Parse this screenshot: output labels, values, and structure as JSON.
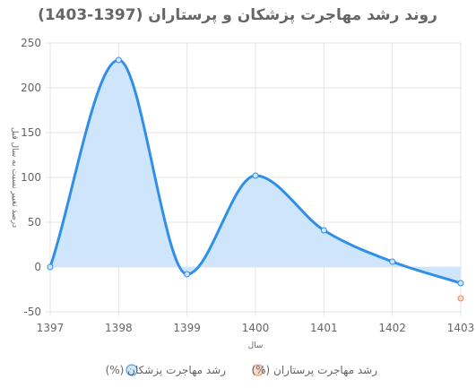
{
  "chart_data": {
    "type": "line",
    "title": "روند رشد مهاجرت پزشکان و پرستاران (1397-1403)",
    "xlabel": "سال",
    "ylabel": "درصد تغییر نسبت به سال قبل",
    "x": [
      "1397",
      "1398",
      "1399",
      "1400",
      "1401",
      "1402",
      "1403"
    ],
    "ylim": [
      -50,
      250
    ],
    "yticks": [
      -50,
      0,
      50,
      100,
      150,
      200,
      250
    ],
    "grid": true,
    "legend_position": "bottom",
    "series": [
      {
        "name": "(%) رشد مهاجرت پزشکان",
        "values": [
          0,
          231,
          -8,
          102,
          41,
          6,
          -18
        ],
        "color": "#2f8fe9",
        "fill": "#cfe5fb"
      },
      {
        "name": "(%) رشد مهاجرت پرستاران",
        "values": [
          null,
          null,
          null,
          null,
          null,
          null,
          -35
        ],
        "color": "#f08a5d",
        "fill": "#fbd9cc"
      }
    ]
  }
}
